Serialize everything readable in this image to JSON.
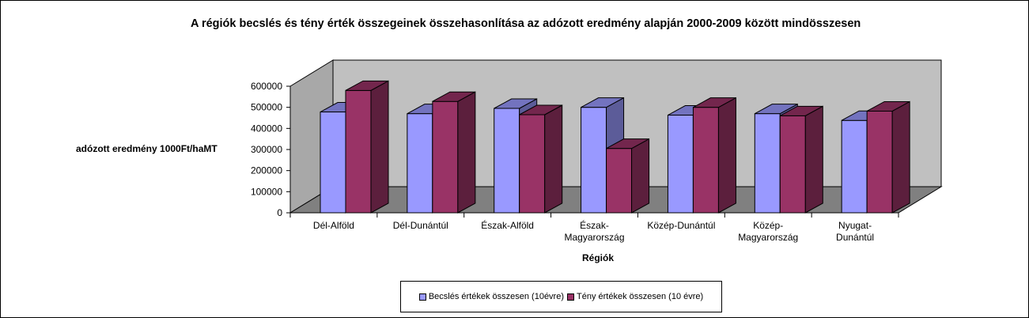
{
  "chart_data": {
    "type": "bar",
    "title": "A régiók becslés és tény érték összegeinek összehasonlítása az adózott eredmény alapján 2000-2009 között mindösszesen",
    "xlabel": "Régiók",
    "ylabel": "adózott eredmény 1000Ft/haMT",
    "ylim": [
      0,
      600000
    ],
    "yticks": [
      "0",
      "100000",
      "200000",
      "300000",
      "400000",
      "500000",
      "600000"
    ],
    "categories": [
      [
        "Dél-Alföld"
      ],
      [
        "Dél-Dunántúl"
      ],
      [
        "Észak-Alföld"
      ],
      [
        "Észak-",
        "Magyarország"
      ],
      [
        "Közép-Dunántúl"
      ],
      [
        "Közép-",
        "Magyarország"
      ],
      [
        "Nyugat-",
        "Dunántúl"
      ]
    ],
    "series": [
      {
        "name": "Becslés értékek összesen (10évre)",
        "color": "#9999ff",
        "values": [
          478000,
          470000,
          495000,
          500000,
          463000,
          470000,
          438000
        ]
      },
      {
        "name": "Tény értékek összesen (10 évre)",
        "color": "#993366",
        "values": [
          580000,
          528000,
          465000,
          305000,
          500000,
          460000,
          482000
        ]
      }
    ],
    "legend_position": "bottom",
    "grid": false,
    "three_d": true
  }
}
